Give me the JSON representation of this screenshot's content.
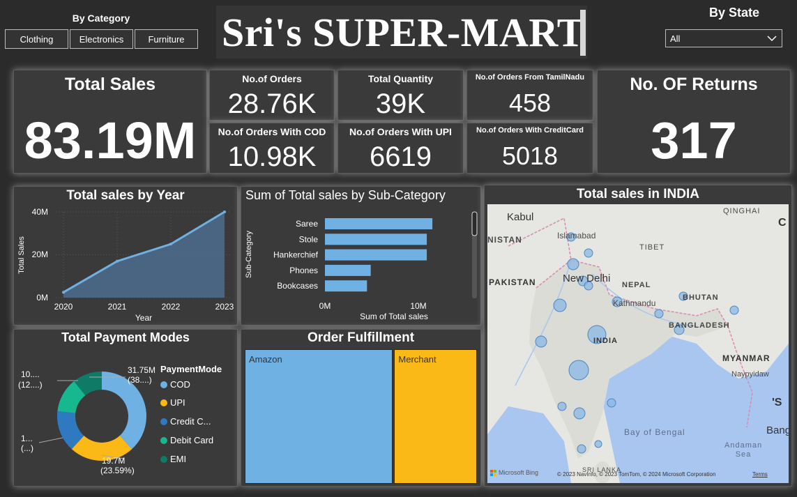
{
  "category_slicer": {
    "title": "By Category",
    "options": [
      "Clothing",
      "Electronics",
      "Furniture"
    ]
  },
  "header": {
    "title": "Sri's SUPER-MART"
  },
  "state_slicer": {
    "title": "By State",
    "selected": "All"
  },
  "kpis": {
    "total_sales": {
      "label": "Total Sales",
      "value": "83.19M"
    },
    "orders": {
      "label": "No.of Orders",
      "value": "28.76K"
    },
    "quantity": {
      "label": "Total Quantity",
      "value": "39K"
    },
    "tamilnadu": {
      "label": "No.of Orders From TamilNadu",
      "value": "458"
    },
    "cod": {
      "label": "No.of Orders With COD",
      "value": "10.98K"
    },
    "upi": {
      "label": "No.of Orders With UPI",
      "value": "6619"
    },
    "creditcard": {
      "label": "No.of Orders With CreditCard",
      "value": "5018"
    },
    "returns": {
      "label": "No. OF Returns",
      "value": "317"
    }
  },
  "year_chart": {
    "title": "Total sales by Year",
    "xlabel": "Year",
    "ylabel": "Total Sales",
    "y_ticks": [
      "0M",
      "20M",
      "40M"
    ],
    "x_ticks": [
      "2020",
      "2021",
      "2022",
      "2023"
    ]
  },
  "subcat_chart": {
    "title": "Sum of Total sales by Sub-Category",
    "xlabel": "Sum of Total sales",
    "ylabel": "Sub-Category",
    "x_ticks": [
      "0M",
      "10M"
    ]
  },
  "payment_chart": {
    "title": "Total Payment Modes",
    "legend_title": "PaymentMode",
    "legend": [
      "COD",
      "UPI",
      "Credit C...",
      "Debit Card",
      "EMI"
    ],
    "labels": {
      "cod_value": "31.75M",
      "cod_pct": "(38....)",
      "upi_value": "19.7M",
      "upi_pct": "(23.59%)",
      "left_top_value": "10....",
      "left_top_pct": "(12....)",
      "left_bottom_value": "1...",
      "left_bottom_pct": "(...)"
    }
  },
  "fulfillment_chart": {
    "title": "Order Fulfillment",
    "labels": [
      "Amazon",
      "Merchant"
    ]
  },
  "map": {
    "title": "Total sales in INDIA",
    "labels": {
      "kabul": "Kabul",
      "islamabad": "Islamabad",
      "nistan": "NISTAN",
      "tibet": "TIBET",
      "qinghai": "QINGHAI",
      "pakistan": "PAKISTAN",
      "new_delhi": "New Delhi",
      "nepal": "NEPAL",
      "kathmandu": "Kathmandu",
      "bhutan": "BHUTAN",
      "bangladesh": "BANGLADESH",
      "india": "INDIA",
      "myanmar": "MYANMAR",
      "naypyidaw": "Naypyidaw",
      "bay_of_bengal": "Bay of Bengal",
      "andaman_sea": "Andaman Sea",
      "bang": "Bang",
      "c": "C",
      "s": "'S",
      "sri_lanka": "SRI LANKA"
    },
    "attribution": "© 2023 NavInfo, © 2023 TomTom, © 2024 Microsoft Corporation",
    "terms": "Terms",
    "bing": "Microsoft Bing"
  },
  "chart_data": [
    {
      "type": "area",
      "title": "Total sales by Year",
      "x": [
        2020,
        2021,
        2022,
        2023
      ],
      "values": [
        2.5,
        17,
        25,
        40
      ],
      "unit": "M",
      "xlabel": "Year",
      "ylabel": "Total Sales",
      "ylim": [
        0,
        40
      ]
    },
    {
      "type": "bar",
      "title": "Sum of Total sales by Sub-Category",
      "categories": [
        "Saree",
        "Stole",
        "Hankerchief",
        "Phones",
        "Bookcases"
      ],
      "values": [
        11.5,
        10.9,
        10.9,
        4.9,
        4.5
      ],
      "unit": "M",
      "xlabel": "Sum of Total sales",
      "ylabel": "Sub-Category",
      "xlim": [
        0,
        14
      ]
    },
    {
      "type": "pie",
      "title": "Total Payment Modes",
      "categories": [
        "COD",
        "UPI",
        "Credit Card",
        "Debit Card",
        "EMI"
      ],
      "values": [
        38.2,
        23.59,
        15,
        12.5,
        10.7
      ],
      "colors": [
        "#6fb1e3",
        "#fbb917",
        "#2f79c0",
        "#17b890",
        "#0f7a66"
      ]
    },
    {
      "type": "bar",
      "title": "Order Fulfillment",
      "categories": [
        "Amazon",
        "Merchant"
      ],
      "values": [
        64,
        36
      ],
      "colors": [
        "#6fb1e3",
        "#fbb917"
      ]
    }
  ]
}
